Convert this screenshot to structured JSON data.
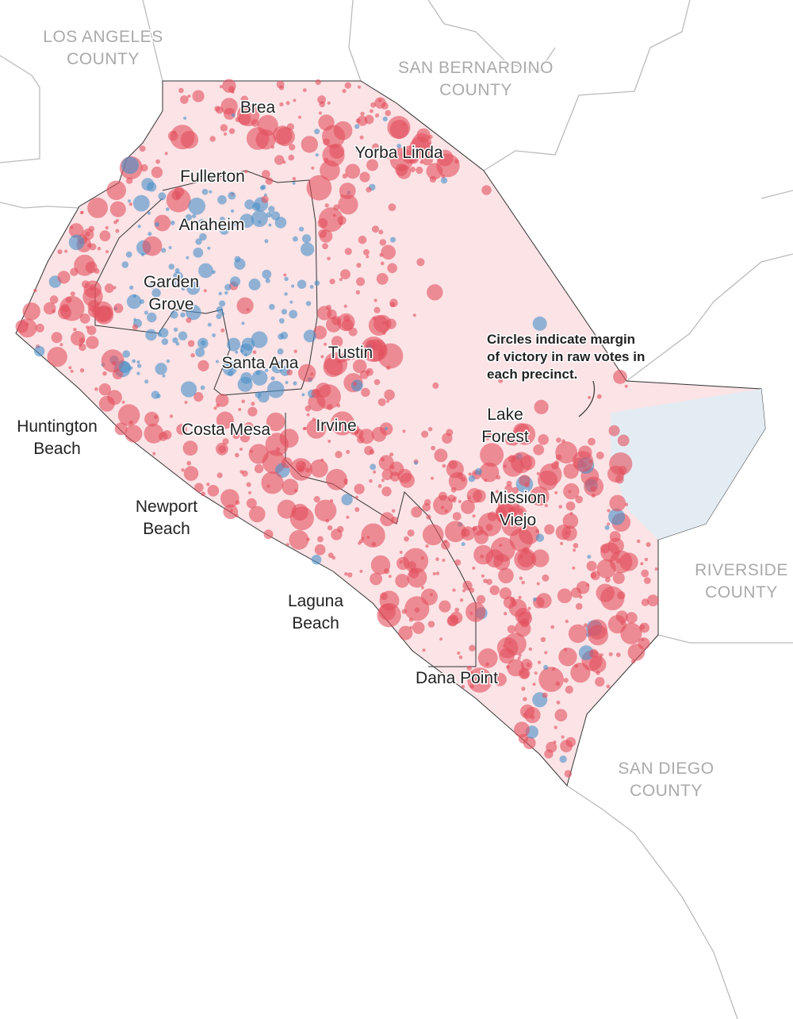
{
  "map": {
    "counties": [
      {
        "lines": [
          "LOS ANGELES",
          "COUNTY"
        ]
      },
      {
        "lines": [
          "SAN BERNARDINO",
          "COUNTY"
        ]
      },
      {
        "lines": [
          "RIVERSIDE",
          "COUNTY"
        ]
      },
      {
        "lines": [
          "SAN DIEGO",
          "COUNTY"
        ]
      }
    ],
    "cities": [
      {
        "lines": [
          "Brea"
        ]
      },
      {
        "lines": [
          "Yorba Linda"
        ]
      },
      {
        "lines": [
          "Fullerton"
        ]
      },
      {
        "lines": [
          "Anaheim"
        ]
      },
      {
        "lines": [
          "Garden",
          "Grove"
        ]
      },
      {
        "lines": [
          "Santa Ana"
        ]
      },
      {
        "lines": [
          "Tustin"
        ]
      },
      {
        "lines": [
          "Huntington",
          "Beach"
        ]
      },
      {
        "lines": [
          "Costa Mesa"
        ]
      },
      {
        "lines": [
          "Irvine"
        ]
      },
      {
        "lines": [
          "Newport",
          "Beach"
        ]
      },
      {
        "lines": [
          "Laguna",
          "Beach"
        ]
      },
      {
        "lines": [
          "Dana Point"
        ]
      },
      {
        "lines": [
          "Lake",
          "Forest"
        ]
      },
      {
        "lines": [
          "Mission",
          "Viejo"
        ]
      }
    ],
    "annotation": {
      "lines": [
        "Circles indicate margin",
        "of victory in raw votes in",
        "each precinct."
      ]
    }
  }
}
